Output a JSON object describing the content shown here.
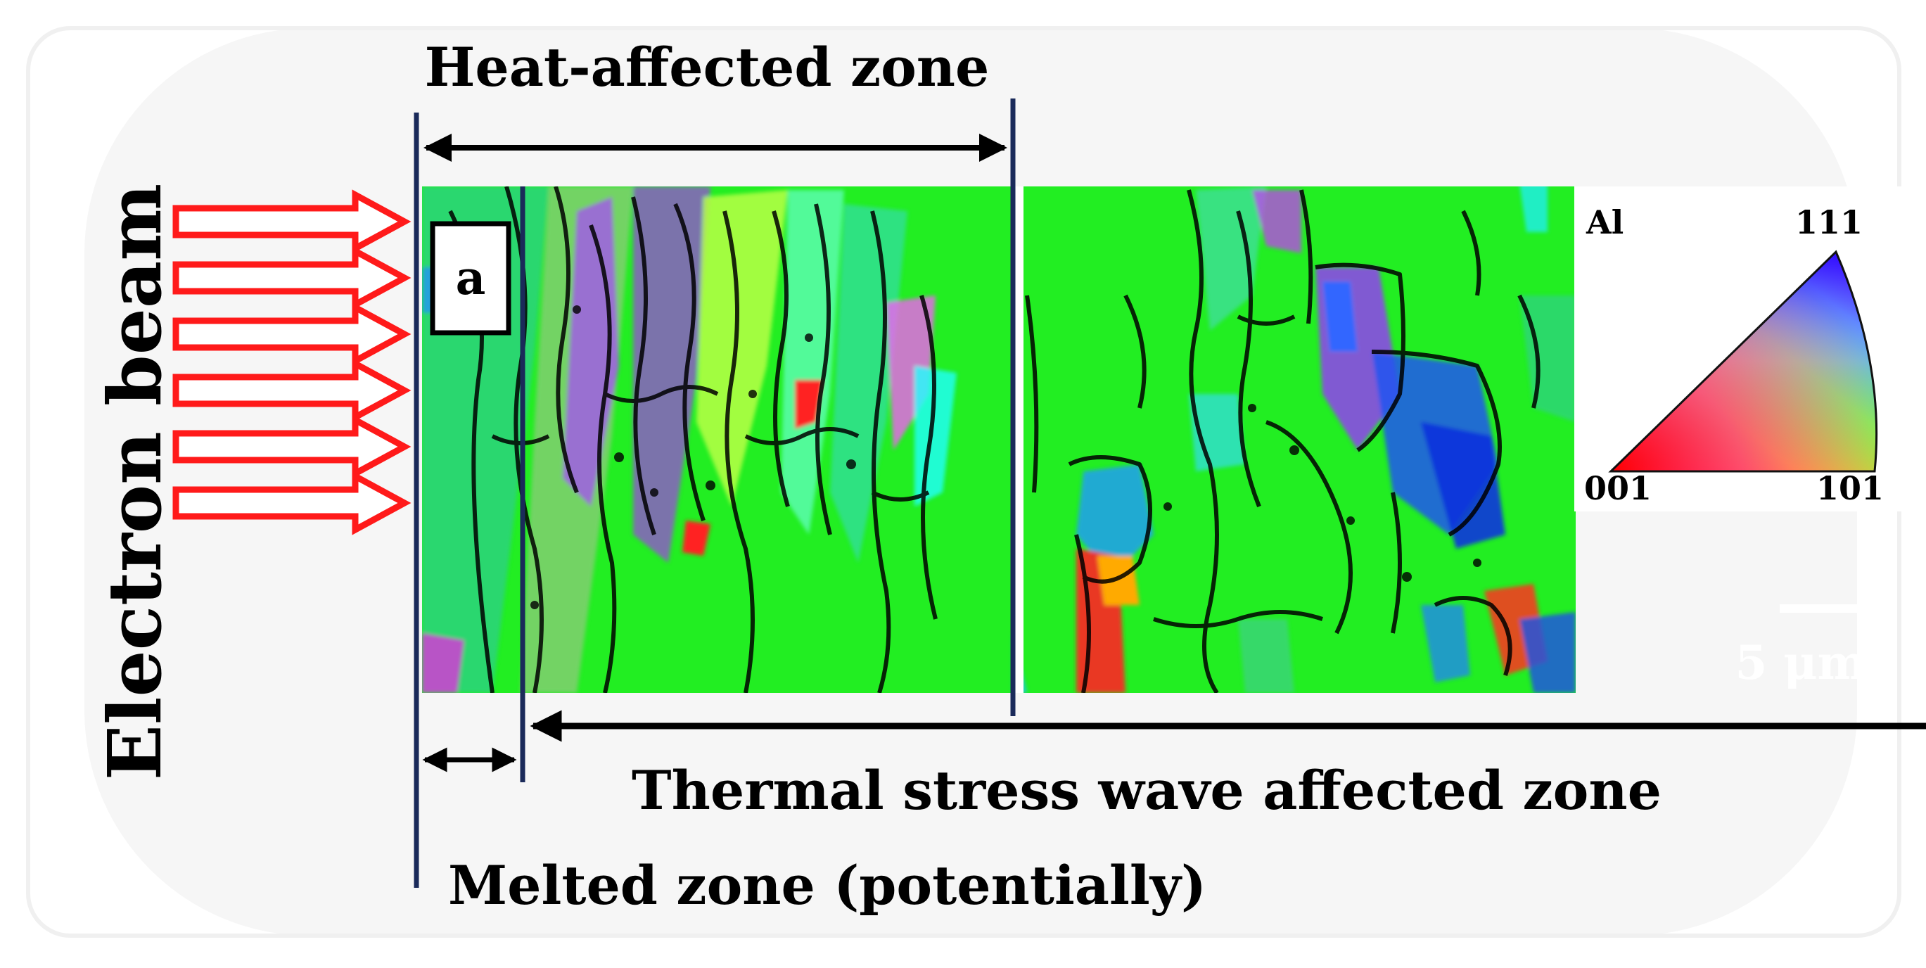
{
  "labels": {
    "beam": "Electron beam",
    "haz": "Heat-affected zone",
    "tswaz": "Thermal stress wave affected zone",
    "melted": "Melted zone (potentially)",
    "panel": "a",
    "scale": "5 μm"
  },
  "legend": {
    "material": "Al",
    "corners": {
      "c111": "111",
      "c001": "001",
      "c101": "101"
    }
  },
  "arrows": {
    "count": 6
  },
  "colors": {
    "beam_arrow": "#ff1a1a",
    "boundary": "#1a2a5a",
    "grain_main": "#22ee22",
    "text": "#000000"
  }
}
